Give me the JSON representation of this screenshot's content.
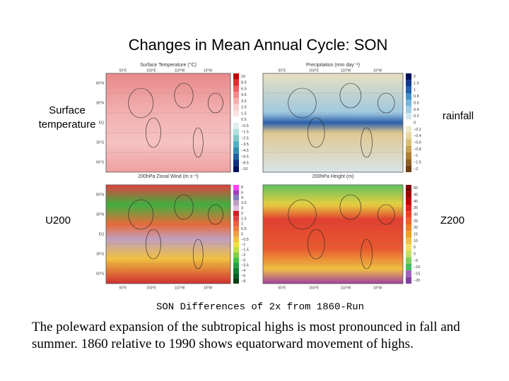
{
  "title": "Changes in Mean Annual Cycle:  SON",
  "side_labels": {
    "surface_temperature": "Surface temperature",
    "rainfall": "rainfall",
    "u200": "U200",
    "z200": "Z200"
  },
  "panels": [
    {
      "title": "Surface Temperature (°C)",
      "colorbar": [
        "10",
        "8.5",
        "6.5",
        "4.5",
        "3.5",
        "2.5",
        "1.5",
        "0.5",
        "−0.5",
        "−1.5",
        "−2.5",
        "−3.5",
        "−4.5",
        "−6.5",
        "−8.5",
        "−10"
      ]
    },
    {
      "title": "Precipitation (mm day⁻¹)",
      "colorbar": [
        "2",
        "1.5",
        "1",
        "0.8",
        "0.6",
        "0.4",
        "0.2",
        "0",
        "−0.2",
        "−0.4",
        "−0.6",
        "−0.8",
        "−1",
        "−1.5",
        "−2"
      ]
    },
    {
      "title": "200hPa Zonal Wind (m s⁻¹)",
      "colorbar": [
        "8",
        "6",
        "4",
        "3.5",
        "3",
        "2",
        "1.5",
        "1",
        "0.5",
        "0",
        "−0.5",
        "−1",
        "−1.5",
        "−2",
        "−3",
        "−3.5",
        "−4",
        "−6",
        "−8"
      ]
    },
    {
      "title": "200hPa Height (m)",
      "colorbar": [
        "50",
        "45",
        "40",
        "35",
        "30",
        "25",
        "20",
        "15",
        "10",
        "5",
        "0",
        "−5",
        "−10",
        "−15",
        "−20"
      ]
    }
  ],
  "longitudes": [
    "50°E",
    "150°E",
    "110°W",
    "10°W"
  ],
  "latitudes": [
    "60°N",
    "30°N",
    "EQ",
    "30°S",
    "60°S"
  ],
  "figure_caption": "SON Differences of 2x from 1860-Run",
  "body_text": "The poleward expansion of the subtropical highs is most pronounced in fall and summer. 1860 relative to 1990 shows equatorward movement of highs."
}
